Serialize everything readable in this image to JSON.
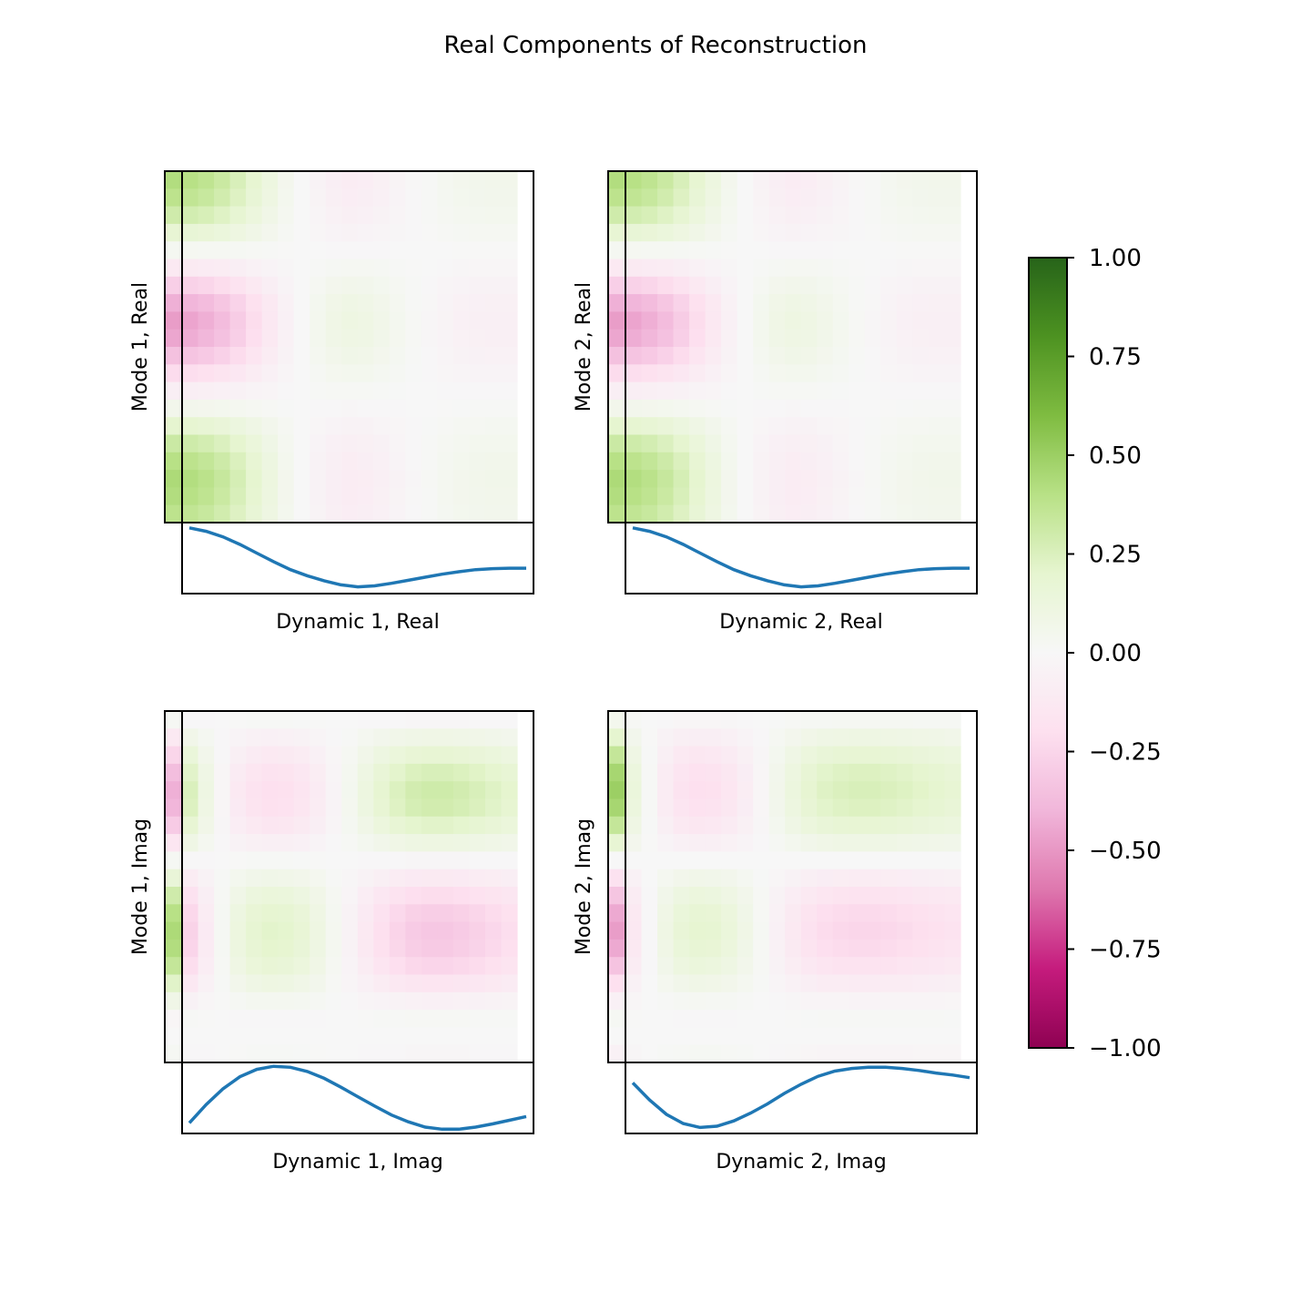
{
  "title": "Real Components of Reconstruction",
  "colorbar": {
    "cmap": "PiYG",
    "ticks": [
      "1.00",
      "0.75",
      "0.50",
      "0.25",
      "0.00",
      "−0.25",
      "−0.50",
      "−0.75",
      "−1.00"
    ],
    "range": [
      -1,
      1
    ]
  },
  "line_color": "#1f77b4",
  "chart_data": [
    {
      "type": "heatmap",
      "ylabel": "Mode 1, Real",
      "xlabel": "Dynamic 1, Real",
      "mode": [
        0.42,
        0.38,
        0.3,
        0.18,
        0.03,
        -0.12,
        -0.28,
        -0.42,
        -0.48,
        -0.45,
        -0.35,
        -0.22,
        -0.08,
        0.06,
        0.2,
        0.32,
        0.4,
        0.44,
        0.42,
        0.38
      ],
      "dynamic": [
        0.95,
        0.88,
        0.77,
        0.62,
        0.45,
        0.28,
        0.12,
        0.0,
        -0.1,
        -0.18,
        -0.22,
        -0.2,
        -0.15,
        -0.09,
        -0.03,
        0.03,
        0.08,
        0.12,
        0.14,
        0.15,
        0.15
      ],
      "dynamic_ylim": [
        -0.3,
        1.0
      ]
    },
    {
      "type": "heatmap",
      "ylabel": "Mode 2, Real",
      "xlabel": "Dynamic 2, Real",
      "mode": [
        0.42,
        0.38,
        0.3,
        0.18,
        0.03,
        -0.12,
        -0.28,
        -0.42,
        -0.48,
        -0.45,
        -0.35,
        -0.22,
        -0.08,
        0.06,
        0.2,
        0.32,
        0.4,
        0.44,
        0.42,
        0.38
      ],
      "dynamic": [
        0.95,
        0.88,
        0.77,
        0.62,
        0.45,
        0.28,
        0.12,
        0.0,
        -0.1,
        -0.18,
        -0.22,
        -0.2,
        -0.15,
        -0.09,
        -0.03,
        0.03,
        0.08,
        0.12,
        0.14,
        0.15,
        0.15
      ],
      "dynamic_ylim": [
        -0.3,
        1.0
      ]
    },
    {
      "type": "heatmap",
      "ylabel": "Mode 1, Imag",
      "xlabel": "Dynamic 1, Imag",
      "mode": [
        0.02,
        -0.12,
        -0.25,
        -0.36,
        -0.42,
        -0.4,
        -0.3,
        -0.15,
        0.02,
        0.16,
        0.3,
        0.4,
        0.44,
        0.42,
        0.35,
        0.22,
        0.08,
        -0.02,
        0.0,
        0.02
      ],
      "dynamic": [
        -0.6,
        -0.25,
        0.05,
        0.28,
        0.42,
        0.48,
        0.46,
        0.38,
        0.25,
        0.08,
        -0.1,
        -0.28,
        -0.45,
        -0.58,
        -0.68,
        -0.72,
        -0.72,
        -0.68,
        -0.62,
        -0.55,
        -0.48
      ],
      "dynamic_ylim": [
        -0.75,
        0.5
      ]
    },
    {
      "type": "heatmap",
      "ylabel": "Mode 2, Imag",
      "xlabel": "Dynamic 2, Imag",
      "mode": [
        0.05,
        0.2,
        0.35,
        0.46,
        0.5,
        0.46,
        0.35,
        0.18,
        0.0,
        -0.18,
        -0.33,
        -0.44,
        -0.48,
        -0.44,
        -0.34,
        -0.2,
        -0.06,
        0.02,
        0.0,
        -0.05
      ],
      "dynamic": [
        0.28,
        0.02,
        -0.2,
        -0.34,
        -0.4,
        -0.38,
        -0.3,
        -0.18,
        -0.04,
        0.12,
        0.26,
        0.38,
        0.46,
        0.5,
        0.52,
        0.52,
        0.5,
        0.47,
        0.43,
        0.4,
        0.36
      ],
      "dynamic_ylim": [
        -0.45,
        0.55
      ]
    }
  ]
}
